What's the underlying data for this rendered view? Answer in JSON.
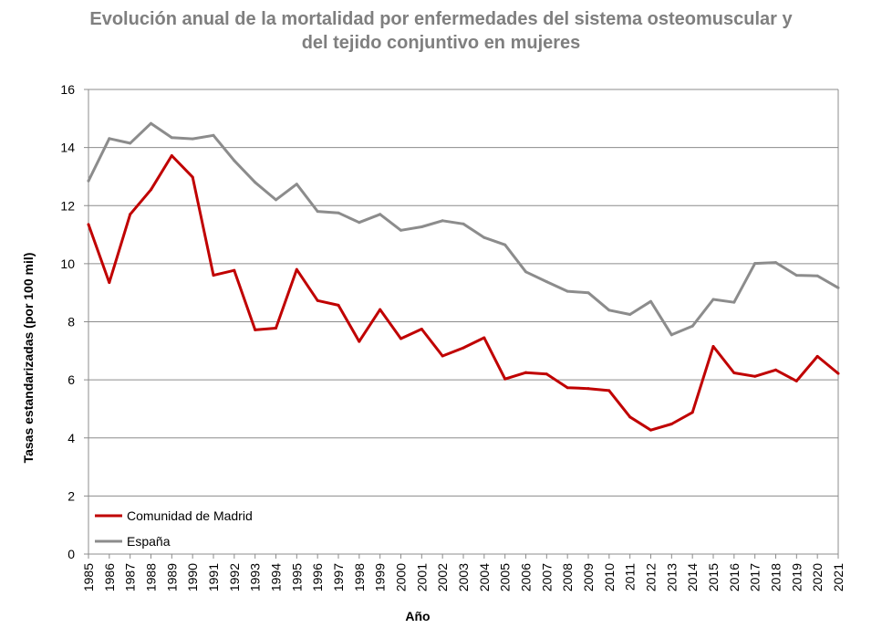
{
  "chart_data": {
    "type": "line",
    "title_line1": "Evolución anual de la mortalidad por enfermedades del sistema osteomuscular y",
    "title_line2": "del tejido conjuntivo en mujeres",
    "xlabel": "Año",
    "ylabel": "Tasas estandarizadas (por 100 mil)",
    "ylim": [
      0,
      16
    ],
    "yticks": [
      0,
      2,
      4,
      6,
      8,
      10,
      12,
      14,
      16
    ],
    "grid": true,
    "legend_position": "bottom-left",
    "categories": [
      "1985",
      "1986",
      "1987",
      "1988",
      "1989",
      "1990",
      "1991",
      "1992",
      "1993",
      "1994",
      "1995",
      "1996",
      "1997",
      "1998",
      "1999",
      "2000",
      "2001",
      "2002",
      "2003",
      "2004",
      "2005",
      "2006",
      "2007",
      "2008",
      "2009",
      "2010",
      "2011",
      "2012",
      "2013",
      "2014",
      "2015",
      "2016",
      "2017",
      "2018",
      "2019",
      "2020",
      "2021"
    ],
    "series": [
      {
        "name": "Comunidad de Madrid",
        "color": "#c00000",
        "values": [
          11.35,
          9.35,
          11.7,
          12.55,
          13.72,
          12.98,
          9.6,
          9.77,
          7.72,
          7.78,
          9.8,
          8.73,
          8.57,
          7.32,
          8.42,
          7.42,
          7.75,
          6.82,
          7.1,
          7.45,
          6.03,
          6.25,
          6.2,
          5.73,
          5.7,
          5.63,
          4.72,
          4.27,
          4.48,
          4.88,
          7.15,
          6.24,
          6.12,
          6.34,
          5.96,
          6.81,
          6.22
        ]
      },
      {
        "name": "España",
        "color": "#8c8c8c",
        "values": [
          12.85,
          14.31,
          14.15,
          14.83,
          14.34,
          14.3,
          14.42,
          13.55,
          12.8,
          12.2,
          12.74,
          11.8,
          11.75,
          11.42,
          11.7,
          11.15,
          11.27,
          11.48,
          11.37,
          10.9,
          10.65,
          9.72,
          9.38,
          9.05,
          9.0,
          8.4,
          8.25,
          8.7,
          7.55,
          7.85,
          8.77,
          8.67,
          10.01,
          10.04,
          9.6,
          9.58,
          9.17
        ]
      }
    ]
  }
}
